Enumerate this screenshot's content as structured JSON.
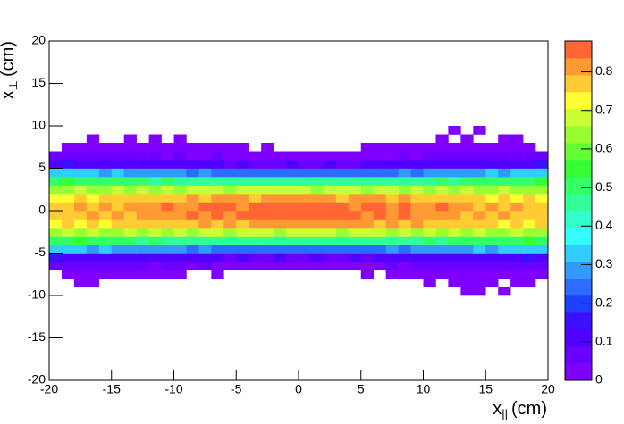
{
  "chart_data": {
    "type": "heatmap",
    "xlabel_main": "x",
    "xlabel_sub": "||",
    "xlabel_unit": "(cm)",
    "ylabel_main": "x",
    "ylabel_sub": "⊥",
    "ylabel_unit": "(cm)",
    "xlim": [
      -20,
      20
    ],
    "ylim": [
      -20,
      20
    ],
    "zlim": [
      0,
      0.88
    ],
    "xticks": [
      -20,
      -15,
      -10,
      -5,
      0,
      5,
      10,
      15,
      20
    ],
    "yticks": [
      -20,
      -15,
      -10,
      -5,
      0,
      5,
      10,
      15,
      20
    ],
    "zticks": [
      0,
      0.1,
      0.2,
      0.3,
      0.4,
      0.5,
      0.6,
      0.7,
      0.8
    ],
    "palette": [
      "#8000ff",
      "#6a00ff",
      "#5200ff",
      "#3a10ff",
      "#2040ff",
      "#2e6cff",
      "#3399ff",
      "#33ccff",
      "#33ffff",
      "#33ffcc",
      "#33ff99",
      "#33ff66",
      "#33ff33",
      "#66ff33",
      "#99ff33",
      "#ccff33",
      "#ffff33",
      "#ffcc33",
      "#ff9933",
      "#ff6633",
      "#ff3333"
    ],
    "xbins": [
      -20,
      -19,
      -18,
      -17,
      -16,
      -15,
      -14,
      -13,
      -12,
      -11,
      -10,
      -9,
      -8,
      -7,
      -6,
      -5,
      -4,
      -3,
      -2,
      -1,
      0,
      1,
      2,
      3,
      4,
      5,
      6,
      7,
      8,
      9,
      10,
      11,
      12,
      13,
      14,
      15,
      16,
      17,
      18,
      19,
      20
    ],
    "ybins": [
      -10,
      -9,
      -8,
      -7,
      -6,
      -5,
      -4,
      -3,
      -2,
      -1,
      0,
      1,
      2,
      3,
      4,
      5,
      6,
      7,
      8,
      9,
      10
    ],
    "z": [
      [
        0,
        0,
        0,
        0,
        0,
        0,
        0,
        0,
        0,
        0,
        0,
        0,
        0,
        0,
        0,
        0,
        0,
        0,
        0,
        0,
        0,
        0,
        0,
        0,
        0,
        0,
        0,
        0,
        0,
        0,
        0,
        0,
        0,
        0.01,
        0.01,
        0,
        0.01,
        0,
        0,
        0
      ],
      [
        0,
        0,
        0.01,
        0.01,
        0,
        0,
        0,
        0,
        0,
        0,
        0,
        0,
        0,
        0,
        0,
        0,
        0,
        0,
        0,
        0,
        0,
        0,
        0,
        0,
        0,
        0,
        0,
        0,
        0,
        0,
        0.01,
        0,
        0.01,
        0.01,
        0.01,
        0.01,
        0,
        0.01,
        0.01,
        0
      ],
      [
        0,
        0.02,
        0.02,
        0.02,
        0.02,
        0.01,
        0.02,
        0.02,
        0.01,
        0.01,
        0.01,
        0,
        0,
        0.01,
        0,
        0,
        0,
        0,
        0,
        0,
        0,
        0,
        0,
        0,
        0,
        0.01,
        0,
        0.01,
        0.01,
        0.02,
        0.02,
        0.02,
        0.01,
        0.02,
        0.02,
        0.02,
        0.02,
        0.02,
        0.02,
        0.01
      ],
      [
        0.05,
        0.06,
        0.05,
        0.05,
        0.06,
        0.05,
        0.05,
        0.05,
        0.04,
        0.05,
        0.05,
        0.04,
        0.05,
        0.04,
        0.04,
        0.04,
        0.03,
        0.04,
        0.03,
        0.04,
        0.03,
        0.04,
        0.04,
        0.03,
        0.04,
        0.04,
        0.04,
        0.05,
        0.04,
        0.05,
        0.05,
        0.05,
        0.06,
        0.05,
        0.05,
        0.06,
        0.05,
        0.06,
        0.05,
        0.06
      ],
      [
        0.14,
        0.13,
        0.12,
        0.13,
        0.12,
        0.11,
        0.12,
        0.1,
        0.11,
        0.1,
        0.1,
        0.09,
        0.1,
        0.09,
        0.08,
        0.09,
        0.08,
        0.08,
        0.09,
        0.08,
        0.08,
        0.09,
        0.08,
        0.08,
        0.09,
        0.08,
        0.09,
        0.1,
        0.09,
        0.1,
        0.11,
        0.1,
        0.11,
        0.12,
        0.11,
        0.12,
        0.13,
        0.12,
        0.14,
        0.13
      ],
      [
        0.34,
        0.32,
        0.33,
        0.3,
        0.31,
        0.29,
        0.3,
        0.28,
        0.29,
        0.27,
        0.27,
        0.26,
        0.27,
        0.25,
        0.26,
        0.24,
        0.25,
        0.24,
        0.25,
        0.24,
        0.24,
        0.25,
        0.24,
        0.25,
        0.24,
        0.26,
        0.25,
        0.27,
        0.26,
        0.28,
        0.28,
        0.29,
        0.3,
        0.29,
        0.31,
        0.3,
        0.32,
        0.31,
        0.33,
        0.34
      ],
      [
        0.52,
        0.5,
        0.53,
        0.5,
        0.51,
        0.49,
        0.5,
        0.48,
        0.49,
        0.47,
        0.48,
        0.46,
        0.47,
        0.46,
        0.45,
        0.46,
        0.44,
        0.45,
        0.46,
        0.44,
        0.45,
        0.44,
        0.46,
        0.45,
        0.44,
        0.46,
        0.47,
        0.46,
        0.48,
        0.47,
        0.49,
        0.48,
        0.5,
        0.49,
        0.51,
        0.5,
        0.52,
        0.5,
        0.53,
        0.52
      ],
      [
        0.64,
        0.66,
        0.63,
        0.67,
        0.65,
        0.64,
        0.66,
        0.65,
        0.67,
        0.64,
        0.66,
        0.65,
        0.67,
        0.66,
        0.65,
        0.67,
        0.66,
        0.68,
        0.65,
        0.67,
        0.66,
        0.68,
        0.66,
        0.65,
        0.67,
        0.66,
        0.68,
        0.65,
        0.67,
        0.64,
        0.66,
        0.65,
        0.67,
        0.64,
        0.66,
        0.65,
        0.63,
        0.66,
        0.64,
        0.65
      ],
      [
        0.72,
        0.75,
        0.73,
        0.76,
        0.74,
        0.77,
        0.75,
        0.78,
        0.76,
        0.77,
        0.79,
        0.77,
        0.8,
        0.78,
        0.81,
        0.79,
        0.82,
        0.8,
        0.81,
        0.83,
        0.8,
        0.82,
        0.81,
        0.83,
        0.8,
        0.82,
        0.79,
        0.81,
        0.78,
        0.8,
        0.77,
        0.79,
        0.76,
        0.78,
        0.75,
        0.77,
        0.74,
        0.76,
        0.73,
        0.75
      ],
      [
        0.76,
        0.79,
        0.77,
        0.8,
        0.78,
        0.81,
        0.79,
        0.82,
        0.8,
        0.83,
        0.81,
        0.84,
        0.82,
        0.85,
        0.83,
        0.86,
        0.84,
        0.85,
        0.86,
        0.84,
        0.86,
        0.85,
        0.87,
        0.84,
        0.86,
        0.83,
        0.85,
        0.82,
        0.84,
        0.81,
        0.83,
        0.8,
        0.82,
        0.79,
        0.81,
        0.78,
        0.8,
        0.77,
        0.79,
        0.76
      ],
      [
        0.78,
        0.76,
        0.8,
        0.77,
        0.81,
        0.79,
        0.8,
        0.82,
        0.81,
        0.84,
        0.82,
        0.83,
        0.85,
        0.84,
        0.86,
        0.83,
        0.85,
        0.87,
        0.84,
        0.86,
        0.85,
        0.84,
        0.86,
        0.85,
        0.83,
        0.86,
        0.84,
        0.82,
        0.85,
        0.83,
        0.81,
        0.84,
        0.8,
        0.82,
        0.79,
        0.81,
        0.78,
        0.8,
        0.76,
        0.78
      ],
      [
        0.74,
        0.72,
        0.76,
        0.73,
        0.77,
        0.75,
        0.76,
        0.78,
        0.77,
        0.79,
        0.78,
        0.8,
        0.79,
        0.81,
        0.8,
        0.82,
        0.79,
        0.81,
        0.83,
        0.8,
        0.82,
        0.8,
        0.81,
        0.79,
        0.82,
        0.8,
        0.81,
        0.78,
        0.8,
        0.77,
        0.79,
        0.76,
        0.78,
        0.75,
        0.77,
        0.74,
        0.76,
        0.73,
        0.75,
        0.72
      ],
      [
        0.65,
        0.63,
        0.66,
        0.64,
        0.65,
        0.67,
        0.64,
        0.66,
        0.65,
        0.67,
        0.65,
        0.68,
        0.66,
        0.67,
        0.65,
        0.68,
        0.67,
        0.66,
        0.68,
        0.66,
        0.67,
        0.65,
        0.68,
        0.66,
        0.67,
        0.65,
        0.67,
        0.66,
        0.64,
        0.66,
        0.65,
        0.67,
        0.64,
        0.66,
        0.65,
        0.64,
        0.66,
        0.63,
        0.65,
        0.64
      ],
      [
        0.51,
        0.53,
        0.5,
        0.52,
        0.5,
        0.49,
        0.51,
        0.49,
        0.48,
        0.49,
        0.47,
        0.48,
        0.46,
        0.47,
        0.45,
        0.46,
        0.45,
        0.44,
        0.45,
        0.46,
        0.44,
        0.45,
        0.44,
        0.46,
        0.45,
        0.44,
        0.46,
        0.47,
        0.46,
        0.48,
        0.47,
        0.49,
        0.48,
        0.5,
        0.49,
        0.51,
        0.5,
        0.52,
        0.51,
        0.53
      ],
      [
        0.33,
        0.34,
        0.31,
        0.32,
        0.3,
        0.31,
        0.29,
        0.28,
        0.29,
        0.27,
        0.28,
        0.26,
        0.27,
        0.25,
        0.26,
        0.24,
        0.25,
        0.24,
        0.23,
        0.25,
        0.24,
        0.23,
        0.25,
        0.24,
        0.25,
        0.24,
        0.26,
        0.25,
        0.27,
        0.26,
        0.28,
        0.27,
        0.29,
        0.3,
        0.29,
        0.31,
        0.3,
        0.32,
        0.33,
        0.35
      ],
      [
        0.13,
        0.14,
        0.12,
        0.13,
        0.11,
        0.12,
        0.11,
        0.11,
        0.1,
        0.11,
        0.09,
        0.1,
        0.09,
        0.09,
        0.08,
        0.09,
        0.08,
        0.08,
        0.08,
        0.09,
        0.08,
        0.08,
        0.09,
        0.08,
        0.08,
        0.09,
        0.09,
        0.09,
        0.1,
        0.1,
        0.1,
        0.11,
        0.1,
        0.12,
        0.11,
        0.12,
        0.12,
        0.13,
        0.13,
        0.14
      ],
      [
        0.06,
        0.05,
        0.06,
        0.05,
        0.05,
        0.05,
        0.06,
        0.05,
        0.05,
        0.04,
        0.05,
        0.04,
        0.04,
        0.05,
        0.04,
        0.03,
        0.04,
        0.03,
        0.04,
        0.03,
        0.04,
        0.03,
        0.04,
        0.04,
        0.03,
        0.04,
        0.04,
        0.04,
        0.05,
        0.04,
        0.05,
        0.05,
        0.05,
        0.06,
        0.05,
        0.05,
        0.06,
        0.05,
        0.06,
        0.05
      ],
      [
        0,
        0.02,
        0.02,
        0.02,
        0.02,
        0.02,
        0.02,
        0.02,
        0.02,
        0.02,
        0.01,
        0.02,
        0.02,
        0.01,
        0.01,
        0.01,
        0,
        0.01,
        0,
        0,
        0,
        0,
        0,
        0,
        0,
        0.01,
        0.01,
        0.01,
        0.02,
        0.02,
        0.01,
        0.02,
        0.02,
        0.02,
        0.02,
        0.01,
        0.02,
        0.02,
        0.02,
        0
      ],
      [
        0,
        0,
        0,
        0.01,
        0,
        0,
        0.01,
        0,
        0.01,
        0,
        0.01,
        0,
        0,
        0,
        0,
        0,
        0,
        0,
        0,
        0,
        0,
        0,
        0,
        0,
        0,
        0,
        0,
        0,
        0,
        0,
        0,
        0.01,
        0,
        0.01,
        0,
        0,
        0.01,
        0.01,
        0,
        0
      ],
      [
        0,
        0,
        0,
        0,
        0,
        0,
        0,
        0,
        0,
        0,
        0,
        0,
        0,
        0,
        0,
        0,
        0,
        0,
        0,
        0,
        0,
        0,
        0,
        0,
        0,
        0,
        0,
        0,
        0,
        0,
        0,
        0,
        0.01,
        0,
        0.01,
        0,
        0,
        0,
        0,
        0
      ]
    ]
  }
}
